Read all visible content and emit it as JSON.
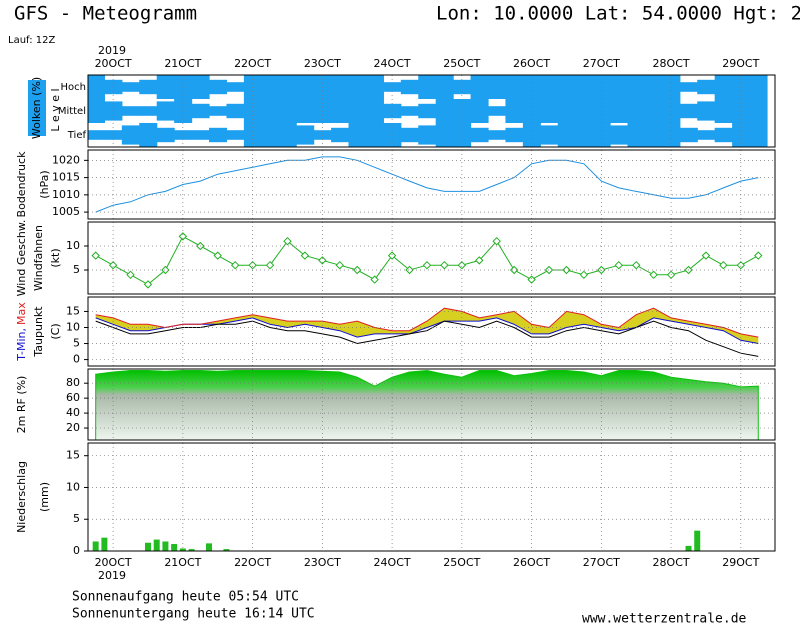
{
  "header": {
    "title": "GFS - Meteogramm",
    "location": "Lon: 10.0000 Lat: 54.0000 Hgt: 2",
    "run": "Lauf: 12Z"
  },
  "x_axis": {
    "year": "2019",
    "xlim": [
      -0.36,
      9.49
    ],
    "xticks": [
      {
        "value": 0,
        "label": "20OCT"
      },
      {
        "value": 1,
        "label": "21OCT"
      },
      {
        "value": 2,
        "label": "22OCT"
      },
      {
        "value": 3,
        "label": "23OCT"
      },
      {
        "value": 4,
        "label": "24OCT"
      },
      {
        "value": 5,
        "label": "25OCT"
      },
      {
        "value": 6,
        "label": "26OCT"
      },
      {
        "value": 7,
        "label": "27OCT"
      },
      {
        "value": 8,
        "label": "28OCT"
      },
      {
        "value": 9,
        "label": "29OCT"
      }
    ]
  },
  "chart_data": [
    {
      "type": "cloud",
      "label": "Wolken (%)",
      "axis_label": "L e v e l",
      "x": [
        -0.25,
        0,
        0.25,
        0.5,
        0.75,
        1,
        1.25,
        1.5,
        1.75,
        2,
        2.25,
        2.5,
        2.75,
        3,
        3.25,
        3.5,
        3.75,
        4,
        4.25,
        4.5,
        4.75,
        5,
        5.25,
        5.5,
        5.75,
        6,
        6.25,
        6.5,
        6.75,
        7,
        7.25,
        7.5,
        7.75,
        8,
        8.25,
        8.5,
        8.75,
        9,
        9.25
      ],
      "series": [
        {
          "name": "Hoch",
          "color": "#1ea0f0",
          "values": [
            100,
            60,
            40,
            60,
            100,
            100,
            100,
            60,
            40,
            100,
            100,
            100,
            100,
            100,
            100,
            100,
            100,
            40,
            60,
            100,
            100,
            60,
            100,
            100,
            100,
            100,
            100,
            100,
            100,
            100,
            100,
            100,
            100,
            100,
            40,
            60,
            100,
            100,
            100
          ]
        },
        {
          "name": "Mittel",
          "color": "#1ea0f0",
          "values": [
            100,
            80,
            40,
            40,
            80,
            100,
            60,
            40,
            60,
            100,
            100,
            100,
            100,
            100,
            100,
            100,
            100,
            60,
            40,
            60,
            100,
            100,
            100,
            40,
            100,
            100,
            100,
            100,
            100,
            100,
            100,
            100,
            100,
            100,
            60,
            80,
            100,
            100,
            100
          ]
        },
        {
          "name": "Tief",
          "color": "#1ea0f0",
          "values": [
            40,
            40,
            80,
            100,
            60,
            40,
            40,
            60,
            40,
            100,
            100,
            100,
            80,
            40,
            60,
            100,
            100,
            100,
            60,
            80,
            100,
            100,
            60,
            40,
            60,
            100,
            80,
            100,
            100,
            100,
            80,
            100,
            100,
            100,
            60,
            40,
            60,
            100,
            100
          ]
        }
      ]
    },
    {
      "type": "line",
      "labels": [
        "Bodendruck",
        "(hPa)"
      ],
      "ylim": [
        1003,
        1023
      ],
      "yticks": [
        1005,
        1010,
        1015,
        1020
      ],
      "grid": true,
      "x": [
        -0.25,
        0,
        0.25,
        0.5,
        0.75,
        1,
        1.25,
        1.5,
        1.75,
        2,
        2.25,
        2.5,
        2.75,
        3,
        3.25,
        3.5,
        3.75,
        4,
        4.25,
        4.5,
        4.75,
        5,
        5.25,
        5.5,
        5.75,
        6,
        6.25,
        6.5,
        6.75,
        7,
        7.25,
        7.5,
        7.75,
        8,
        8.25,
        8.5,
        8.75,
        9,
        9.25
      ],
      "series": [
        {
          "color": "#1e90e0",
          "values": [
            1005,
            1007,
            1008,
            1010,
            1011,
            1013,
            1014,
            1016,
            1017,
            1018,
            1019,
            1020,
            1020,
            1021,
            1021,
            1020,
            1018,
            1016,
            1014,
            1012,
            1011,
            1011,
            1011,
            1013,
            1015,
            1019,
            1020,
            1020,
            1019,
            1014,
            1012,
            1011,
            1010,
            1009,
            1009,
            1010,
            1012,
            1014,
            1015
          ]
        }
      ]
    },
    {
      "type": "line",
      "labels": [
        "Wind Geschw.",
        "Windfahnen",
        "(kt)"
      ],
      "ylim": [
        0,
        15
      ],
      "yticks": [
        5,
        10
      ],
      "grid": true,
      "marker": "diamond",
      "x": [
        -0.25,
        0,
        0.25,
        0.5,
        0.75,
        1,
        1.25,
        1.5,
        1.75,
        2,
        2.25,
        2.5,
        2.75,
        3,
        3.25,
        3.5,
        3.75,
        4,
        4.25,
        4.5,
        4.75,
        5,
        5.25,
        5.5,
        5.75,
        6,
        6.25,
        6.5,
        6.75,
        7,
        7.25,
        7.5,
        7.75,
        8,
        8.25,
        8.5,
        8.75,
        9,
        9.25
      ],
      "series": [
        {
          "color": "#22b022",
          "values": [
            8,
            6,
            4,
            2,
            5,
            12,
            10,
            8,
            6,
            6,
            6,
            11,
            8,
            7,
            6,
            5,
            3,
            8,
            5,
            6,
            6,
            6,
            7,
            11,
            5,
            3,
            5,
            5,
            4,
            5,
            6,
            6,
            4,
            4,
            5,
            8,
            6,
            6,
            8
          ]
        }
      ]
    },
    {
      "type": "band",
      "labels": [
        "Taupunkt",
        "(C)"
      ],
      "ylim": [
        -2,
        19.5
      ],
      "yticks": [
        0,
        5,
        10,
        15
      ],
      "grid": true,
      "fill": "#d8d020",
      "x": [
        -0.25,
        0,
        0.25,
        0.5,
        0.75,
        1,
        1.25,
        1.5,
        1.75,
        2,
        2.25,
        2.5,
        2.75,
        3,
        3.25,
        3.5,
        3.75,
        4,
        4.25,
        4.5,
        4.75,
        5,
        5.25,
        5.5,
        5.75,
        6,
        6.25,
        6.5,
        6.75,
        7,
        7.25,
        7.5,
        7.75,
        8,
        8.25,
        8.5,
        8.75,
        9,
        9.25
      ],
      "series": [
        {
          "name": "T-Min,",
          "color": "#1010d0",
          "values": [
            13,
            11,
            9,
            9,
            10,
            11,
            11,
            11,
            12,
            13,
            11,
            10,
            11,
            10,
            9,
            7,
            8,
            8,
            8,
            10,
            12,
            12,
            12,
            13,
            11,
            8,
            8,
            10,
            11,
            10,
            9,
            10,
            13,
            12,
            11,
            10,
            9,
            6,
            5
          ]
        },
        {
          "name": "Max",
          "color": "#e02020",
          "values": [
            14,
            13,
            11,
            11,
            10,
            11,
            11,
            12,
            13,
            14,
            13,
            12,
            12,
            12,
            11,
            12,
            10,
            9,
            9,
            12,
            16,
            15,
            13,
            14,
            15,
            11,
            10,
            15,
            14,
            11,
            10,
            14,
            16,
            13,
            12,
            11,
            10,
            8,
            7
          ]
        },
        {
          "name": "Taupunkt",
          "color": "#000000",
          "values": [
            12,
            10,
            8,
            8,
            9,
            10,
            10,
            11,
            11,
            12,
            10,
            9,
            9,
            8,
            7,
            5,
            6,
            7,
            8,
            9,
            12,
            11,
            10,
            12,
            10,
            7,
            7,
            9,
            10,
            9,
            8,
            10,
            12,
            10,
            9,
            6,
            4,
            2,
            1
          ]
        }
      ]
    },
    {
      "type": "area",
      "label": "2m RF (%)",
      "ylim": [
        4,
        99
      ],
      "yticks": [
        20,
        40,
        60,
        80
      ],
      "grid": true,
      "color": "#10c010",
      "x": [
        -0.25,
        0,
        0.25,
        0.5,
        0.75,
        1,
        1.25,
        1.5,
        1.75,
        2,
        2.25,
        2.5,
        2.75,
        3,
        3.25,
        3.5,
        3.75,
        4,
        4.25,
        4.5,
        4.75,
        5,
        5.25,
        5.5,
        5.75,
        6,
        6.25,
        6.5,
        6.75,
        7,
        7.25,
        7.5,
        7.75,
        8,
        8.25,
        8.5,
        8.75,
        9,
        9.25
      ],
      "values": [
        92,
        95,
        97,
        97,
        96,
        97,
        97,
        96,
        97,
        97,
        97,
        97,
        97,
        96,
        95,
        88,
        76,
        88,
        95,
        97,
        92,
        88,
        97,
        97,
        90,
        93,
        97,
        97,
        95,
        90,
        97,
        97,
        95,
        88,
        85,
        82,
        80,
        75,
        76
      ]
    },
    {
      "type": "bar",
      "labels": [
        "Niederschlag",
        "(mm)"
      ],
      "ylim": [
        0,
        17
      ],
      "yticks": [
        0,
        5,
        10,
        15
      ],
      "grid": true,
      "color": "#22bb22",
      "x": [
        -0.25,
        -0.125,
        0.5,
        0.625,
        0.75,
        0.875,
        1,
        1.125,
        1.375,
        1.625,
        8.25,
        8.375
      ],
      "values": [
        1.5,
        2.1,
        1.3,
        1.8,
        1.5,
        1.1,
        0.4,
        0.3,
        1.2,
        0.3,
        0.8,
        3.2
      ]
    }
  ],
  "footer": {
    "sunrise": "Sonnenaufgang heute 05:54 UTC",
    "sunset": "Sonnenuntergang heute 16:14 UTC",
    "source": "www.wetterzentrale.de"
  }
}
